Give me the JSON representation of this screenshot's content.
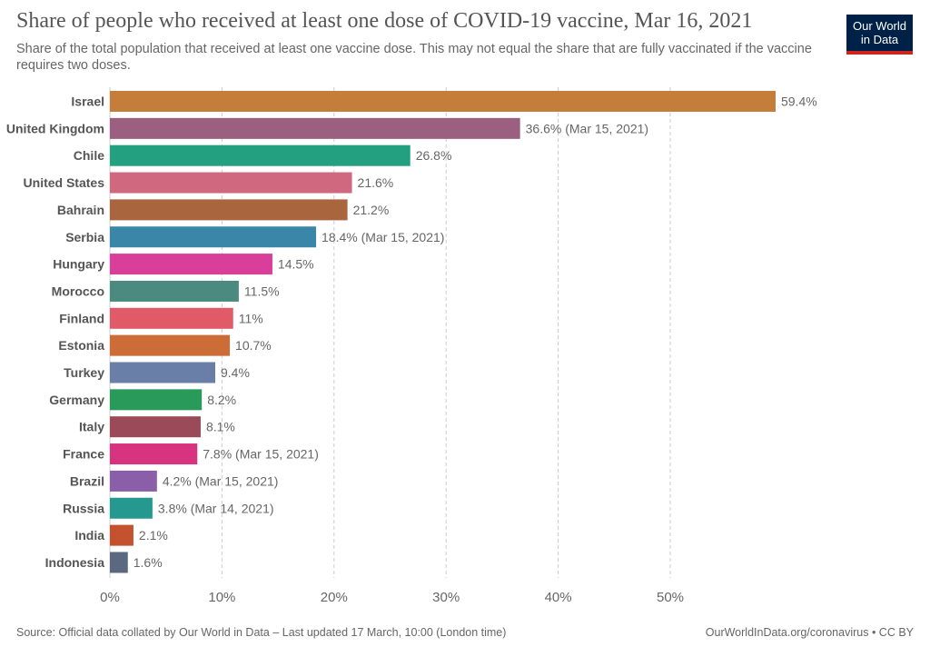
{
  "header": {
    "title": "Share of people who received at least one dose of COVID-19 vaccine, Mar 16, 2021",
    "subtitle": "Share of the total population that received at least one vaccine dose. This may not equal the share that are fully vaccinated if the vaccine requires two doses.",
    "logo_line1": "Our World",
    "logo_line2": "in Data"
  },
  "footer": {
    "source": "Source: Official data collated by Our World in Data – Last updated 17 March, 10:00 (London time)",
    "credit": "OurWorldInData.org/coronavirus • CC BY"
  },
  "chart_data": {
    "type": "bar",
    "orientation": "horizontal",
    "title": "Share of people who received at least one dose of COVID-19 vaccine, Mar 16, 2021",
    "xlim": [
      0,
      60
    ],
    "ticks": [
      0,
      10,
      20,
      30,
      40,
      50
    ],
    "tick_labels": [
      "0%",
      "10%",
      "20%",
      "30%",
      "40%",
      "50%"
    ],
    "grid": "vertical dashed",
    "categories": [
      "Israel",
      "United Kingdom",
      "Chile",
      "United States",
      "Bahrain",
      "Serbia",
      "Hungary",
      "Morocco",
      "Finland",
      "Estonia",
      "Turkey",
      "Germany",
      "Italy",
      "France",
      "Brazil",
      "Russia",
      "India",
      "Indonesia"
    ],
    "values": [
      59.4,
      36.6,
      26.8,
      21.6,
      21.2,
      18.4,
      14.5,
      11.5,
      11,
      10.7,
      9.4,
      8.2,
      8.1,
      7.8,
      4.2,
      3.8,
      2.1,
      1.6
    ],
    "labels": [
      "59.4%",
      "36.6% (Mar 15, 2021)",
      "26.8%",
      "21.6%",
      "21.2%",
      "18.4% (Mar 15, 2021)",
      "14.5%",
      "11.5%",
      "11%",
      "10.7%",
      "9.4%",
      "8.2%",
      "8.1%",
      "7.8% (Mar 15, 2021)",
      "4.2% (Mar 15, 2021)",
      "3.8% (Mar 14, 2021)",
      "2.1%",
      "1.6%"
    ],
    "colors": [
      "#c57d3a",
      "#9b5f7f",
      "#23a07f",
      "#d0697f",
      "#a8653e",
      "#3a86a8",
      "#d83e9a",
      "#4a8a7f",
      "#e05a68",
      "#cc6c36",
      "#6a7fa8",
      "#2a9a5a",
      "#9a4a58",
      "#d8337f",
      "#8a5ea8",
      "#25998f",
      "#c4522e",
      "#5a6880"
    ]
  }
}
